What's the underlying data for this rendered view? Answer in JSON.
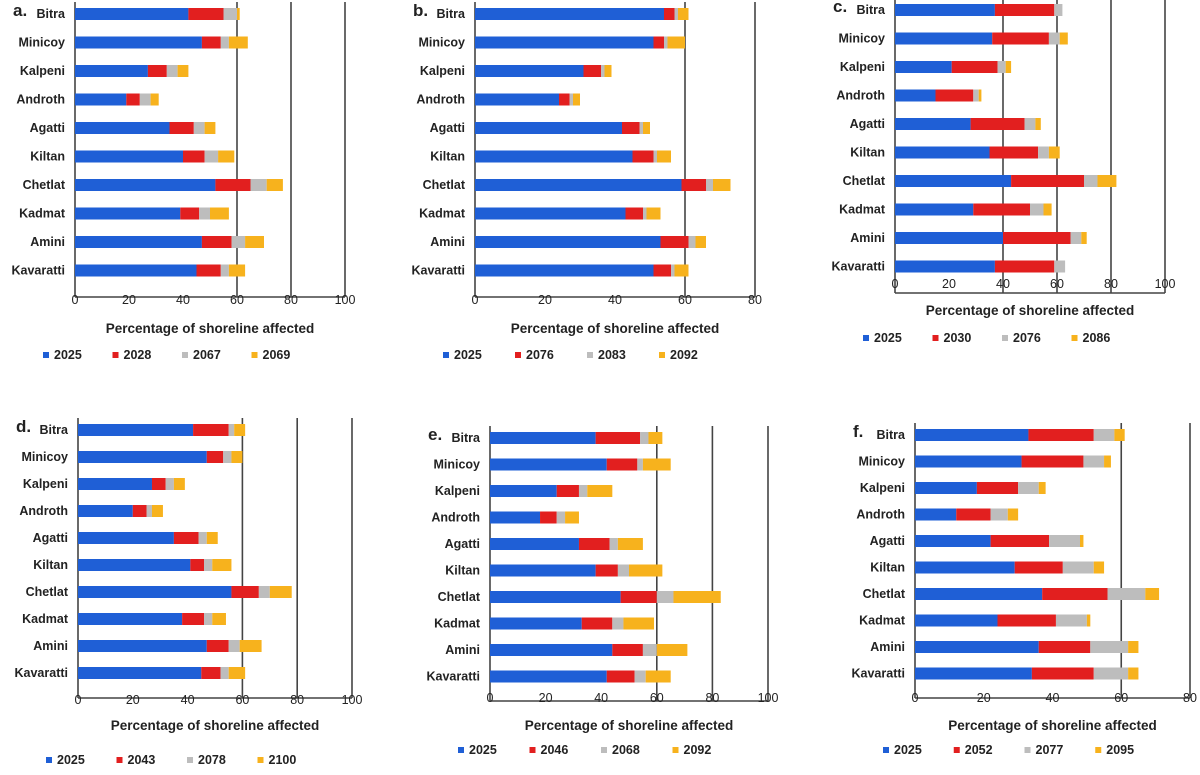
{
  "colors": {
    "s1": "#1f5fd6",
    "s2": "#e21f1f",
    "s3": "#bdbdbd",
    "s4": "#f7b21d"
  },
  "chart_data": [
    {
      "type": "bar",
      "orientation": "horizontal",
      "stacked": true,
      "panel_label": "a.",
      "categories": [
        "Bitra",
        "Minicoy",
        "Kalpeni",
        "Androth",
        "Agatti",
        "Kiltan",
        "Chetlat",
        "Kadmat",
        "Amini",
        "Kavaratti"
      ],
      "xlabel": "Percentage of shoreline affected",
      "xlim": [
        0,
        100
      ],
      "xticks": [
        0,
        20,
        40,
        60,
        80,
        100
      ],
      "vgrid": [
        60,
        80,
        100
      ],
      "legend_position": "bottom",
      "series": [
        {
          "name": "2025",
          "color": "#1f5fd6",
          "values": [
            42,
            47,
            27,
            19,
            35,
            40,
            52,
            39,
            47,
            45
          ]
        },
        {
          "name": "2028",
          "color": "#e21f1f",
          "values": [
            13,
            7,
            7,
            5,
            9,
            8,
            13,
            7,
            11,
            9
          ]
        },
        {
          "name": "2067",
          "color": "#bdbdbd",
          "values": [
            5,
            3,
            4,
            4,
            4,
            5,
            6,
            4,
            5,
            3
          ]
        },
        {
          "name": "2069",
          "color": "#f7b21d",
          "values": [
            1,
            7,
            4,
            3,
            4,
            6,
            6,
            7,
            7,
            6
          ]
        }
      ]
    },
    {
      "type": "bar",
      "orientation": "horizontal",
      "stacked": true,
      "panel_label": "b.",
      "categories": [
        "Bitra",
        "Minicoy",
        "Kalpeni",
        "Androth",
        "Agatti",
        "Kiltan",
        "Chetlat",
        "Kadmat",
        "Amini",
        "Kavaratti"
      ],
      "xlabel": "Percentage of shoreline affected",
      "xlim": [
        0,
        80
      ],
      "xticks": [
        0,
        20,
        40,
        60,
        80
      ],
      "vgrid": [
        60,
        80
      ],
      "legend_position": "bottom",
      "series": [
        {
          "name": "2025",
          "color": "#1f5fd6",
          "values": [
            54,
            51,
            31,
            24,
            42,
            45,
            59,
            43,
            53,
            51
          ]
        },
        {
          "name": "2076",
          "color": "#e21f1f",
          "values": [
            3,
            3,
            5,
            3,
            5,
            6,
            7,
            5,
            8,
            5
          ]
        },
        {
          "name": "2083",
          "color": "#bdbdbd",
          "values": [
            1,
            1,
            1,
            1,
            1,
            1,
            2,
            1,
            2,
            1
          ]
        },
        {
          "name": "2092",
          "color": "#f7b21d",
          "values": [
            3,
            5,
            2,
            2,
            2,
            4,
            5,
            4,
            3,
            4
          ]
        }
      ]
    },
    {
      "type": "bar",
      "orientation": "horizontal",
      "stacked": true,
      "panel_label": "c.",
      "categories": [
        "Bitra",
        "Minicoy",
        "Kalpeni",
        "Androth",
        "Agatti",
        "Kiltan",
        "Chetlat",
        "Kadmat",
        "Amini",
        "Kavaratti"
      ],
      "xlabel": "Percentage of shoreline affected",
      "xlim": [
        0,
        100
      ],
      "xticks": [
        0,
        20,
        40,
        60,
        80,
        100
      ],
      "vgrid": [
        40,
        60,
        80,
        100
      ],
      "legend_position": "bottom",
      "series": [
        {
          "name": "2025",
          "color": "#1f5fd6",
          "values": [
            37,
            36,
            21,
            15,
            28,
            35,
            43,
            29,
            40,
            37
          ]
        },
        {
          "name": "2030",
          "color": "#e21f1f",
          "values": [
            22,
            21,
            17,
            14,
            20,
            18,
            27,
            21,
            25,
            22
          ]
        },
        {
          "name": "2076",
          "color": "#bdbdbd",
          "values": [
            3,
            4,
            3,
            2,
            4,
            4,
            5,
            5,
            4,
            4
          ]
        },
        {
          "name": "2086",
          "color": "#f7b21d",
          "values": [
            0,
            3,
            2,
            1,
            2,
            4,
            7,
            3,
            2,
            0
          ]
        }
      ]
    },
    {
      "type": "bar",
      "orientation": "horizontal",
      "stacked": true,
      "panel_label": "d.",
      "categories": [
        "Bitra",
        "Minicoy",
        "Kalpeni",
        "Androth",
        "Agatti",
        "Kiltan",
        "Chetlat",
        "Kadmat",
        "Amini",
        "Kavaratti"
      ],
      "xlabel": "Percentage of shoreline affected",
      "xlim": [
        0,
        100
      ],
      "xticks": [
        0,
        20,
        40,
        60,
        80,
        100
      ],
      "vgrid": [
        60,
        80,
        100
      ],
      "legend_position": "bottom",
      "series": [
        {
          "name": "2025",
          "color": "#1f5fd6",
          "values": [
            42,
            47,
            27,
            20,
            35,
            41,
            56,
            38,
            47,
            45
          ]
        },
        {
          "name": "2043",
          "color": "#e21f1f",
          "values": [
            13,
            6,
            5,
            5,
            9,
            5,
            10,
            8,
            8,
            7
          ]
        },
        {
          "name": "2078",
          "color": "#bdbdbd",
          "values": [
            2,
            3,
            3,
            2,
            3,
            3,
            4,
            3,
            4,
            3
          ]
        },
        {
          "name": "2100",
          "color": "#f7b21d",
          "values": [
            4,
            4,
            4,
            4,
            4,
            7,
            8,
            5,
            8,
            6
          ]
        }
      ]
    },
    {
      "type": "bar",
      "orientation": "horizontal",
      "stacked": true,
      "panel_label": "e.",
      "categories": [
        "Bitra",
        "Minicoy",
        "Kalpeni",
        "Androth",
        "Agatti",
        "Kiltan",
        "Chetlat",
        "Kadmat",
        "Amini",
        "Kavaratti"
      ],
      "xlabel": "Percentage of shoreline affected",
      "xlim": [
        0,
        100
      ],
      "xticks": [
        0,
        20,
        40,
        60,
        80,
        100
      ],
      "vgrid": [
        60,
        80,
        100
      ],
      "legend_position": "bottom",
      "series": [
        {
          "name": "2025",
          "color": "#1f5fd6",
          "values": [
            38,
            42,
            24,
            18,
            32,
            38,
            47,
            33,
            44,
            42
          ]
        },
        {
          "name": "2046",
          "color": "#e21f1f",
          "values": [
            16,
            11,
            8,
            6,
            11,
            8,
            13,
            11,
            11,
            10
          ]
        },
        {
          "name": "2068",
          "color": "#bdbdbd",
          "values": [
            3,
            2,
            3,
            3,
            3,
            4,
            6,
            4,
            5,
            4
          ]
        },
        {
          "name": "2092",
          "color": "#f7b21d",
          "values": [
            5,
            10,
            9,
            5,
            9,
            12,
            17,
            11,
            11,
            9
          ]
        }
      ]
    },
    {
      "type": "bar",
      "orientation": "horizontal",
      "stacked": true,
      "panel_label": "f.",
      "categories": [
        "Bitra",
        "Minicoy",
        "Kalpeni",
        "Androth",
        "Agatti",
        "Kiltan",
        "Chetlat",
        "Kadmat",
        "Amini",
        "Kavaratti"
      ],
      "xlabel": "Percentage of shoreline affected",
      "xlim": [
        0,
        80
      ],
      "xticks": [
        0,
        20,
        40,
        60,
        80
      ],
      "vgrid": [
        60,
        80
      ],
      "legend_position": "bottom",
      "series": [
        {
          "name": "2025",
          "color": "#1f5fd6",
          "values": [
            33,
            31,
            18,
            12,
            22,
            29,
            37,
            24,
            36,
            34
          ]
        },
        {
          "name": "2052",
          "color": "#e21f1f",
          "values": [
            19,
            18,
            12,
            10,
            17,
            14,
            19,
            17,
            15,
            18
          ]
        },
        {
          "name": "2077",
          "color": "#bdbdbd",
          "values": [
            6,
            6,
            6,
            5,
            9,
            9,
            11,
            9,
            11,
            10
          ]
        },
        {
          "name": "2095",
          "color": "#f7b21d",
          "values": [
            3,
            2,
            2,
            3,
            1,
            3,
            4,
            1,
            3,
            3
          ]
        }
      ]
    }
  ]
}
